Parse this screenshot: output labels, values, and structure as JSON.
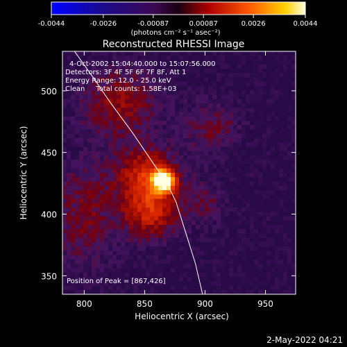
{
  "colorbar": {
    "tick_labels": [
      "-0.0044",
      "-0.0026",
      "-0.00087",
      "0.00087",
      "0.0026",
      "0.0044"
    ],
    "min": -0.0044,
    "max": 0.0044,
    "unit_label": "(photons cm⁻² s⁻¹ asec⁻²)"
  },
  "chart_data": {
    "type": "heatmap",
    "title": "Reconstructed RHESSI Image",
    "xlabel": "Heliocentric X (arcsec)",
    "ylabel": "Heliocentric Y (arcsec)",
    "xlim": [
      782,
      975
    ],
    "ylim": [
      335,
      532
    ],
    "x_ticks": [
      800,
      850,
      900,
      950
    ],
    "y_ticks": [
      350,
      400,
      450,
      500
    ],
    "annotations": [
      "4-Oct-2002 15:04:40.000 to 15:07:56.000",
      "Detectors: 3F 4F 5F 6F 7F 8F, Att 1",
      "Energy Range: 12.0 - 25.0 keV",
      "Clean     Total counts: 1.58E+03"
    ],
    "peak_label": "Position of Peak = [867,426]",
    "peak": [
      867,
      426
    ],
    "limb_curve": [
      [
        792,
        532
      ],
      [
        808,
        510
      ],
      [
        822,
        490
      ],
      [
        840,
        466
      ],
      [
        858,
        440
      ],
      [
        868,
        426
      ],
      [
        876,
        410
      ],
      [
        884,
        385
      ],
      [
        892,
        360
      ],
      [
        898,
        335
      ]
    ],
    "sources": [
      {
        "x": 866,
        "y": 427,
        "sx": 6,
        "sy": 6,
        "amp": 1.0
      },
      {
        "x": 852,
        "y": 430,
        "sx": 18,
        "sy": 16,
        "amp": 0.45
      },
      {
        "x": 855,
        "y": 400,
        "sx": 16,
        "sy": 14,
        "amp": 0.38
      },
      {
        "x": 830,
        "y": 490,
        "sx": 22,
        "sy": 20,
        "amp": 0.28
      },
      {
        "x": 800,
        "y": 400,
        "sx": 18,
        "sy": 30,
        "amp": 0.22
      },
      {
        "x": 905,
        "y": 470,
        "sx": 16,
        "sy": 14,
        "amp": 0.2
      },
      {
        "x": 900,
        "y": 410,
        "sx": 12,
        "sy": 12,
        "amp": 0.15
      }
    ]
  },
  "timestamp": "2-May-2022 04:21"
}
